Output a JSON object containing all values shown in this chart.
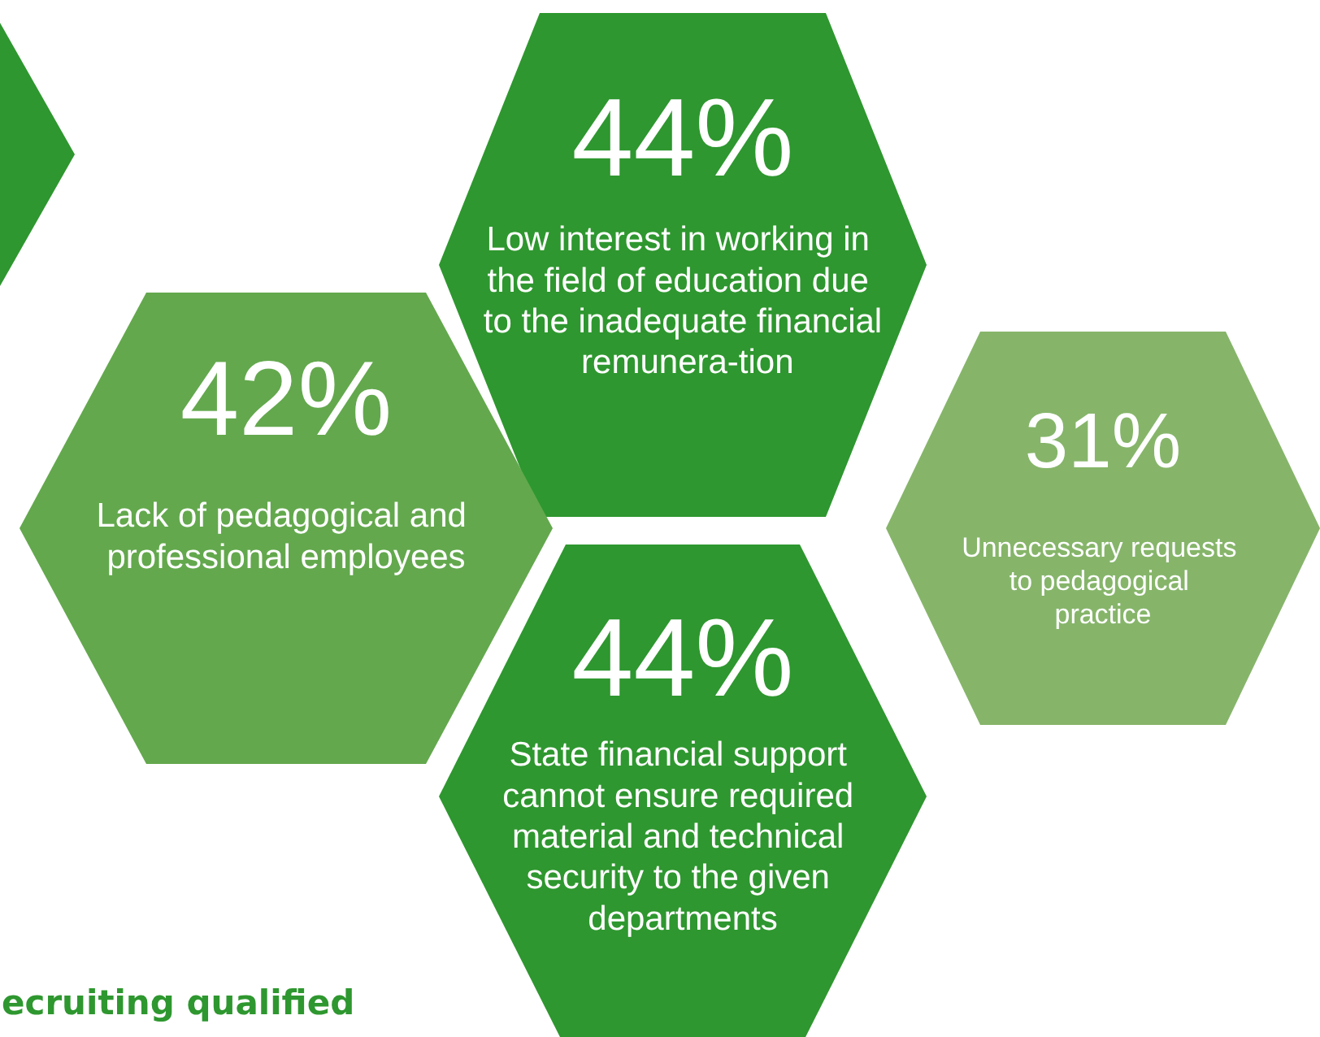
{
  "chart_data": {
    "type": "other",
    "categories": [
      "Low interest in working in the field of education due to the inadequate financial remunera-tion",
      "Lack of pedagogical and professional employees",
      "Unnecessary requests to pedagogical practice",
      "State financial support cannot ensure required material and technical security to the given departments"
    ],
    "values": [
      44,
      42,
      31,
      44
    ],
    "value_labels": [
      "44%",
      "42%",
      "31%",
      "44%"
    ],
    "colors": [
      "#2e972f",
      "#63a84d",
      "#86b56a",
      "#2e972f"
    ],
    "annotations": [
      "ecruiting qualified"
    ]
  }
}
